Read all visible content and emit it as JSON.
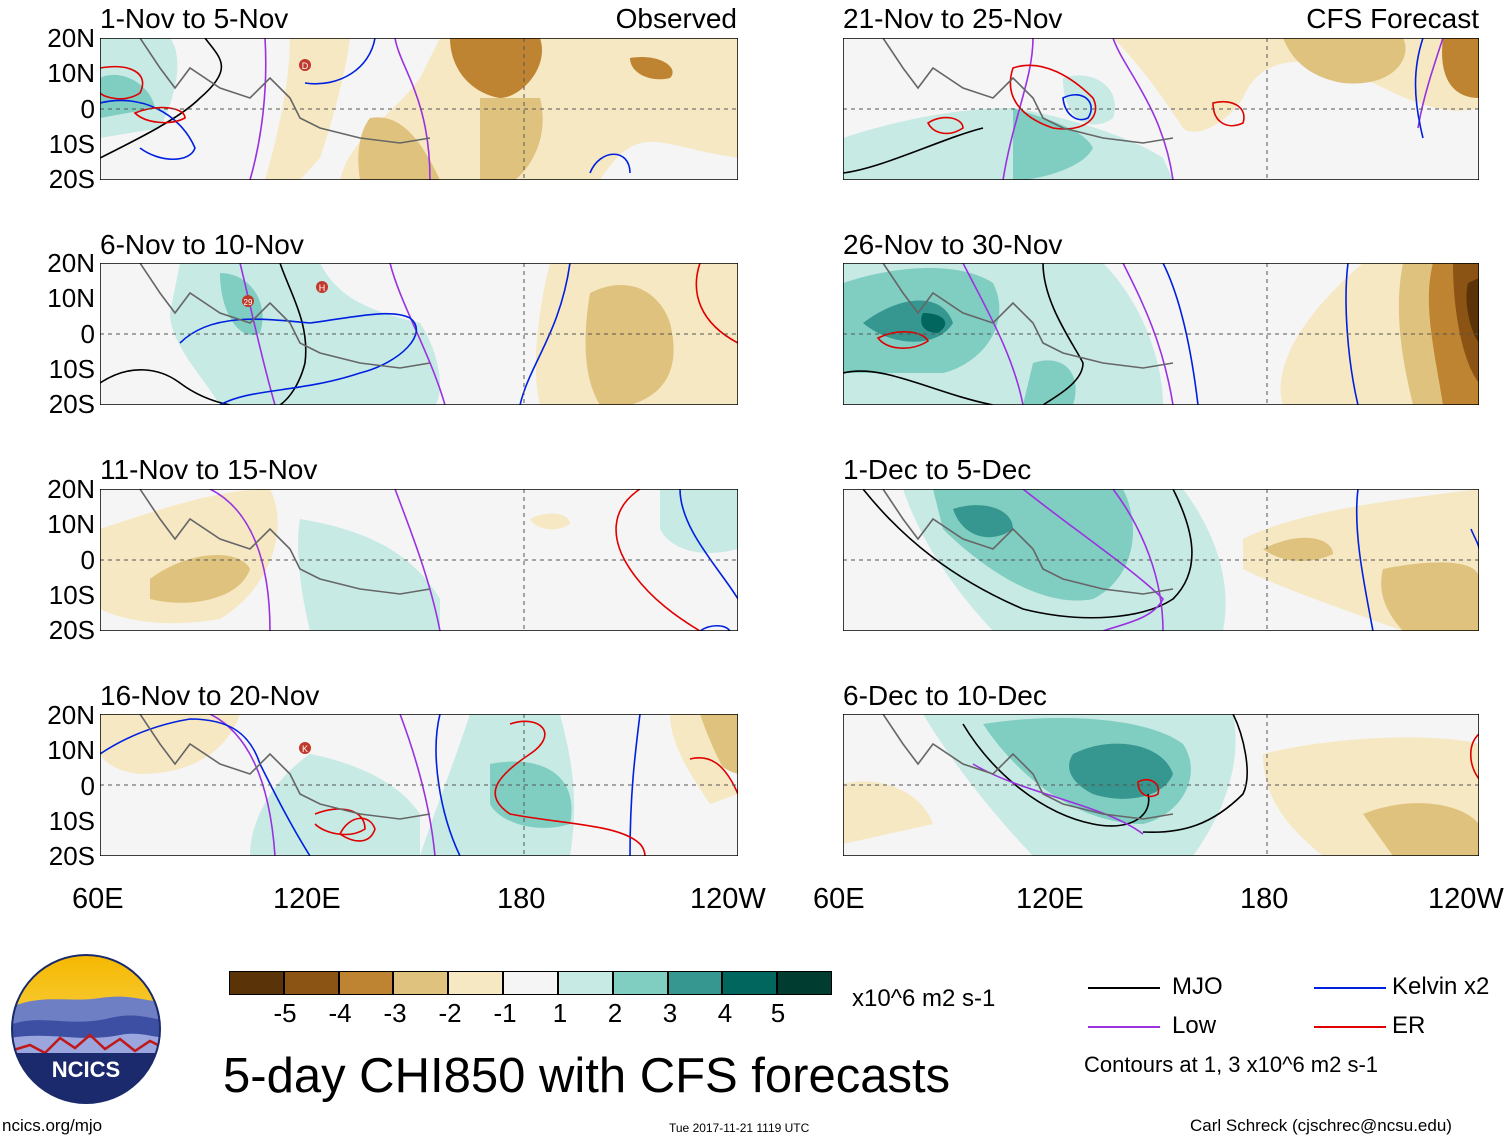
{
  "title": "5-day CHI850 with CFS forecasts",
  "labels": {
    "observed": "Observed",
    "forecast": "CFS Forecast"
  },
  "footer": {
    "left": "ncics.org/mjo",
    "center": "Tue 2017-11-21 1119 UTC",
    "right": "Carl Schreck (cjschrec@ncsu.edu)"
  },
  "logo": {
    "text": "NCICS"
  },
  "colors": {
    "mjo": "#000000",
    "low": "#9a32e0",
    "kelvin": "#0020e0",
    "er": "#e00000",
    "brown": [
      "#5a3408",
      "#8c5414",
      "#bf8432",
      "#dfc27d",
      "#f6e8c3"
    ],
    "white": "#f5f5f5",
    "green": [
      "#c7eae5",
      "#80cdc1",
      "#35978f",
      "#01665e",
      "#003c30"
    ]
  },
  "chart_data": {
    "type": "heatmap",
    "variable": "5-day CHI850",
    "units": "x10^6 m2 s-1",
    "colorbar_ticks": [
      "-5",
      "-4",
      "-3",
      "-2",
      "-1",
      "1",
      "2",
      "3",
      "4",
      "5"
    ],
    "x_ticks": [
      "60E",
      "120E",
      "180",
      "120W"
    ],
    "y_ticks": [
      "20N",
      "10N",
      "0",
      "10S",
      "20S"
    ],
    "legend": [
      {
        "name": "MJO",
        "color": "#000000"
      },
      {
        "name": "Kelvin x2",
        "color": "#0020e0"
      },
      {
        "name": "Low",
        "color": "#9a32e0"
      },
      {
        "name": "ER",
        "color": "#e00000"
      }
    ],
    "contour_note": "Contours at 1, 3 x10^6 m2 s-1",
    "panels": [
      {
        "label": "1-Nov to 5-Nov",
        "source": "Observed"
      },
      {
        "label": "6-Nov to 10-Nov",
        "source": "Observed"
      },
      {
        "label": "11-Nov to 15-Nov",
        "source": "Observed"
      },
      {
        "label": "16-Nov to 20-Nov",
        "source": "Observed"
      },
      {
        "label": "21-Nov to 25-Nov",
        "source": "CFS Forecast"
      },
      {
        "label": "26-Nov to 30-Nov",
        "source": "CFS Forecast"
      },
      {
        "label": "1-Dec to 5-Dec",
        "source": "CFS Forecast"
      },
      {
        "label": "6-Dec to 10-Dec",
        "source": "CFS Forecast"
      }
    ],
    "storm_markers": [
      "D",
      "29",
      "H",
      "K"
    ]
  }
}
